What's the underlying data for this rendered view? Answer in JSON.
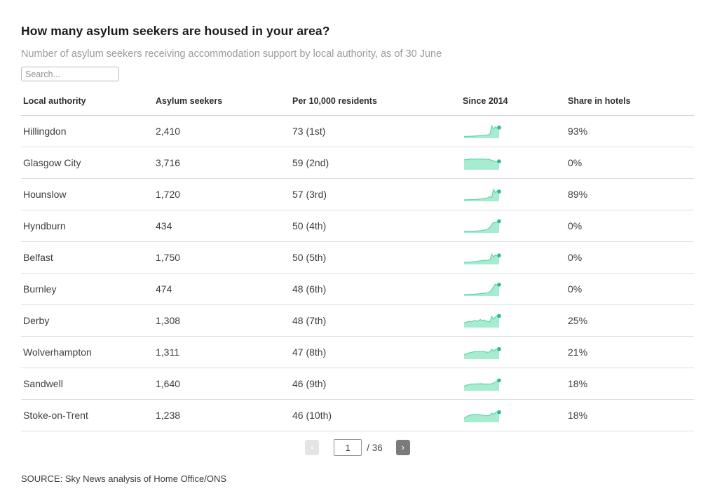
{
  "header": {
    "title": "How many asylum seekers are housed in your area?",
    "subtitle": "Number of asylum seekers receiving accommodation support by local authority, as of 30 June"
  },
  "search": {
    "placeholder": "Search..."
  },
  "colors": {
    "spark_fill": "#a7ecd1",
    "spark_line": "#5cd9ab",
    "spark_dot": "#2abc8a"
  },
  "table": {
    "columns": [
      "Local authority",
      "Asylum seekers",
      "Per 10,000 residents",
      "Since 2014",
      "Share in hotels"
    ],
    "rows": [
      {
        "local_authority": "Hillingdon",
        "asylum_seekers": "2,410",
        "per_10000": "73 (1st)",
        "share_in_hotels": "93%",
        "spark": [
          8,
          8,
          9,
          9,
          10,
          10,
          11,
          12,
          13,
          14,
          15,
          16,
          18,
          20,
          24,
          88,
          62,
          80,
          70,
          74
        ]
      },
      {
        "local_authority": "Glasgow City",
        "asylum_seekers": "3,716",
        "per_10000": "59 (2nd)",
        "share_in_hotels": "0%",
        "spark": [
          68,
          72,
          70,
          74,
          76,
          73,
          75,
          77,
          74,
          76,
          73,
          75,
          72,
          74,
          70,
          66,
          62,
          56,
          54,
          58
        ]
      },
      {
        "local_authority": "Hounslow",
        "asylum_seekers": "1,720",
        "per_10000": "57 (3rd)",
        "share_in_hotels": "89%",
        "spark": [
          6,
          6,
          7,
          7,
          8,
          8,
          9,
          10,
          11,
          12,
          14,
          16,
          18,
          22,
          30,
          24,
          85,
          60,
          75,
          68
        ]
      },
      {
        "local_authority": "Hyndburn",
        "asylum_seekers": "434",
        "per_10000": "50 (4th)",
        "share_in_hotels": "0%",
        "spark": [
          6,
          6,
          6,
          7,
          7,
          8,
          8,
          9,
          10,
          11,
          13,
          15,
          18,
          24,
          35,
          55,
          75,
          70,
          78,
          82
        ]
      },
      {
        "local_authority": "Belfast",
        "asylum_seekers": "1,750",
        "per_10000": "50 (5th)",
        "share_in_hotels": "0%",
        "spark": [
          10,
          11,
          12,
          13,
          14,
          15,
          16,
          18,
          20,
          22,
          24,
          26,
          25,
          27,
          28,
          72,
          52,
          66,
          60,
          62
        ]
      },
      {
        "local_authority": "Burnley",
        "asylum_seekers": "474",
        "per_10000": "48 (6th)",
        "share_in_hotels": "0%",
        "spark": [
          6,
          6,
          7,
          7,
          8,
          8,
          9,
          10,
          11,
          12,
          13,
          15,
          17,
          20,
          26,
          40,
          65,
          85,
          74,
          80
        ]
      },
      {
        "local_authority": "Derby",
        "asylum_seekers": "1,308",
        "per_10000": "48 (7th)",
        "share_in_hotels": "25%",
        "spark": [
          30,
          34,
          38,
          42,
          38,
          44,
          48,
          40,
          50,
          54,
          46,
          52,
          44,
          40,
          38,
          78,
          58,
          74,
          86,
          82
        ]
      },
      {
        "local_authority": "Wolverhampton",
        "asylum_seekers": "1,311",
        "per_10000": "47 (8th)",
        "share_in_hotels": "21%",
        "spark": [
          28,
          33,
          38,
          43,
          46,
          49,
          52,
          50,
          53,
          51,
          54,
          50,
          48,
          46,
          50,
          70,
          56,
          66,
          72,
          70
        ]
      },
      {
        "local_authority": "Sandwell",
        "asylum_seekers": "1,640",
        "per_10000": "46 (9th)",
        "share_in_hotels": "18%",
        "spark": [
          28,
          34,
          38,
          42,
          45,
          46,
          44,
          47,
          45,
          48,
          46,
          45,
          44,
          46,
          44,
          47,
          52,
          62,
          70,
          72
        ]
      },
      {
        "local_authority": "Stoke-on-Trent",
        "asylum_seekers": "1,238",
        "per_10000": "46 (10th)",
        "share_in_hotels": "18%",
        "spark": [
          26,
          34,
          42,
          47,
          50,
          54,
          52,
          55,
          53,
          50,
          48,
          45,
          43,
          45,
          48,
          64,
          54,
          68,
          74,
          70
        ]
      }
    ]
  },
  "pagination": {
    "prev_label": "‹",
    "next_label": "›",
    "current_page": "1",
    "total_suffix": "/ 36"
  },
  "source": "SOURCE: Sky News analysis of Home Office/ONS"
}
